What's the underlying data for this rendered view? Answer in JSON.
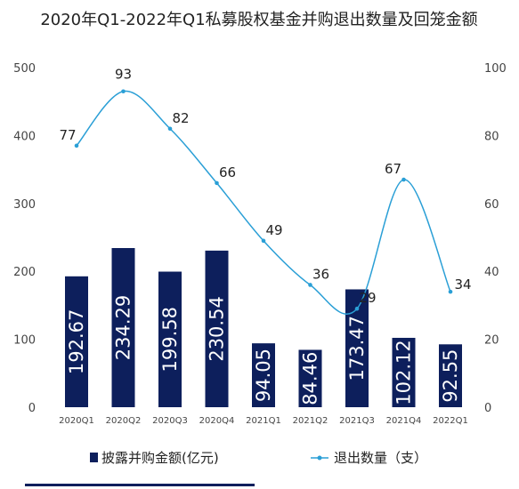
{
  "chart_data": {
    "type": "bar+line",
    "title": "2020年Q1-2022年Q1私募股权基金并购退出数量及回笼金额",
    "categories": [
      "2020Q1",
      "2020Q2",
      "2020Q3",
      "2020Q4",
      "2021Q1",
      "2021Q2",
      "2021Q3",
      "2021Q4",
      "2022Q1"
    ],
    "bar_series": {
      "name": "披露并购金额(亿元)",
      "values": [
        192.67,
        234.29,
        199.58,
        230.54,
        94.05,
        84.46,
        173.47,
        102.12,
        92.55
      ],
      "axis": "left",
      "color": "#0d1f5c"
    },
    "line_series": {
      "name": "退出数量（支）",
      "values": [
        77,
        93,
        82,
        66,
        49,
        36,
        29,
        67,
        34
      ],
      "axis": "right",
      "color": "#2a9fd6"
    },
    "left_axis": {
      "ylim": [
        0,
        500
      ],
      "ticks": [
        0,
        100,
        200,
        300,
        400,
        500
      ]
    },
    "right_axis": {
      "ylim": [
        0,
        100
      ],
      "ticks": [
        0,
        20,
        40,
        60,
        80,
        100
      ]
    },
    "legend_position": "bottom",
    "grid": false
  }
}
